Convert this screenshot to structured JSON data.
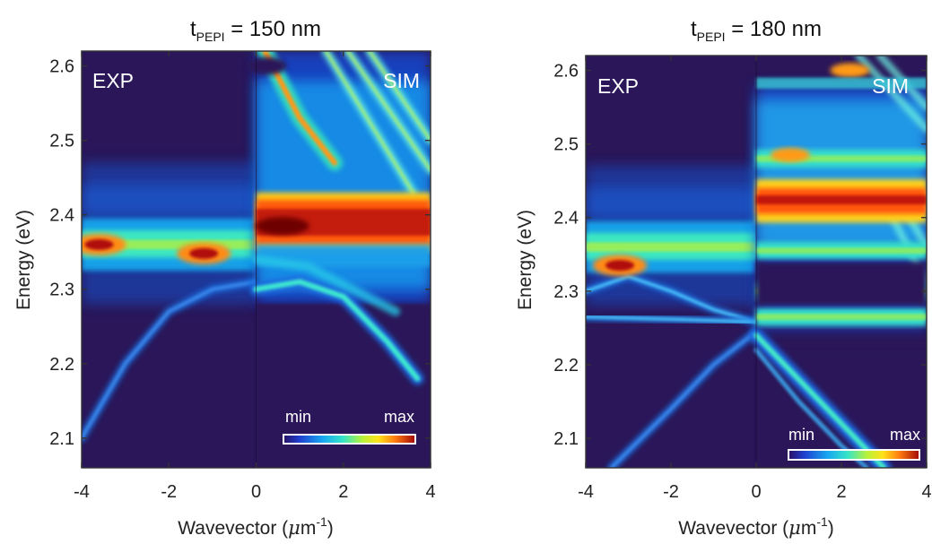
{
  "figure": {
    "panels": [
      {
        "title_main": "t",
        "title_sub": "PEPI",
        "title_value": " = 150 nm",
        "left_label": "EXP",
        "right_label": "SIM",
        "ylabel": "Energy (eV)",
        "xlabel_main": "Wavevector (",
        "xlabel_mu": "μ",
        "xlabel_unit": "m",
        "xlabel_exp": "-1",
        "xlabel_close": ")",
        "xticks": [
          "-4",
          "-2",
          "0",
          "2",
          "4"
        ],
        "yticks": [
          "2.1",
          "2.2",
          "2.3",
          "2.4",
          "2.5",
          "2.6"
        ],
        "colorbar_min": "min",
        "colorbar_max": "max"
      },
      {
        "title_main": "t",
        "title_sub": "PEPI",
        "title_value": " = 180 nm",
        "left_label": "EXP",
        "right_label": "SIM",
        "ylabel": "Energy (eV)",
        "xlabel_main": "Wavevector (",
        "xlabel_mu": "μ",
        "xlabel_unit": "m",
        "xlabel_exp": "-1",
        "xlabel_close": ")",
        "xticks": [
          "-4",
          "-2",
          "0",
          "2",
          "4"
        ],
        "yticks": [
          "2.1",
          "2.2",
          "2.3",
          "2.4",
          "2.5",
          "2.6"
        ],
        "colorbar_min": "min",
        "colorbar_max": "max"
      }
    ]
  },
  "chart_data": [
    {
      "type": "heatmap",
      "title": "tPEPI = 150 nm",
      "xlabel": "Wavevector (μm-1)",
      "ylabel": "Energy (eV)",
      "xlim": [
        -4,
        4
      ],
      "ylim": [
        2.06,
        2.62
      ],
      "xticks": [
        -4,
        -2,
        0,
        2,
        4
      ],
      "yticks": [
        2.1,
        2.2,
        2.3,
        2.4,
        2.5,
        2.6
      ],
      "halves": {
        "left": "EXP",
        "right": "SIM"
      },
      "colorbar": {
        "labels": [
          "min",
          "max"
        ],
        "colormap": "jet",
        "placement": "bottom-right"
      },
      "features": {
        "exp": {
          "exciton_band_center": 2.36,
          "exciton_band_width": 0.035,
          "hotspots": [
            {
              "k": -1.2,
              "E": 2.348
            },
            {
              "k": -3.6,
              "E": 2.36
            }
          ],
          "lower_branch": [
            [
              -4,
              2.1
            ],
            [
              -3,
              2.2
            ],
            [
              -2,
              2.27
            ],
            [
              -1,
              2.3
            ],
            [
              0,
              2.31
            ]
          ],
          "upper_glow_center": 2.42
        },
        "sim": {
          "exciton_band": [
            2.36,
            2.42
          ],
          "exciton_peak": {
            "k": 0.6,
            "E": 2.385
          },
          "upper_mode": [
            [
              0.2,
              2.62
            ],
            [
              1,
              2.53
            ],
            [
              1.8,
              2.47
            ]
          ],
          "upper_streaks": [
            [
              [
                1.6,
                2.62
              ],
              [
                3.6,
                2.43
              ]
            ],
            [
              [
                2.1,
                2.62
              ],
              [
                4,
                2.46
              ]
            ],
            [
              [
                2.6,
                2.62
              ],
              [
                4,
                2.5
              ]
            ]
          ],
          "lower_branch": [
            [
              0,
              2.3
            ],
            [
              1,
              2.31
            ],
            [
              2,
              2.29
            ],
            [
              3,
              2.23
            ],
            [
              3.7,
              2.18
            ]
          ],
          "dark_region_below": 2.28
        }
      }
    },
    {
      "type": "heatmap",
      "title": "tPEPI = 180 nm",
      "xlabel": "Wavevector (μm-1)",
      "ylabel": "Energy (eV)",
      "xlim": [
        -4,
        4
      ],
      "ylim": [
        2.06,
        2.62
      ],
      "xticks": [
        -4,
        -2,
        0,
        2,
        4
      ],
      "yticks": [
        2.1,
        2.2,
        2.3,
        2.4,
        2.5,
        2.6
      ],
      "halves": {
        "left": "EXP",
        "right": "SIM"
      },
      "colorbar": {
        "labels": [
          "min",
          "max"
        ],
        "colormap": "jet",
        "placement": "bottom-right"
      },
      "features": {
        "exp": {
          "exciton_band_center": 2.36,
          "exciton_band_width": 0.035,
          "hotspots": [
            {
              "k": -3.2,
              "E": 2.335
            }
          ],
          "branches": [
            [
              [
                -4,
                2.3
              ],
              [
                -3,
                2.32
              ],
              [
                -2,
                2.3
              ],
              [
                -1,
                2.275
              ],
              [
                0,
                2.258
              ]
            ],
            [
              [
                -4,
                2.265
              ],
              [
                -2,
                2.262
              ],
              [
                0,
                2.258
              ]
            ],
            [
              [
                -3.4,
                2.06
              ],
              [
                -2,
                2.14
              ],
              [
                -1,
                2.2
              ],
              [
                0,
                2.245
              ]
            ]
          ],
          "upper_glow_center": 2.42
        },
        "sim": {
          "exciton_band": [
            2.405,
            2.44
          ],
          "bands": [
            2.355,
            2.3,
            2.265,
            2.48
          ],
          "hotspots": [
            {
              "k": 0.8,
              "E": 2.485
            },
            {
              "k": 2.2,
              "E": 2.6
            }
          ],
          "lower_branch": [
            [
              0,
              2.24
            ],
            [
              1,
              2.18
            ],
            [
              2,
              2.12
            ],
            [
              3,
              2.06
            ]
          ],
          "dark_region": [
            2.28,
            2.34
          ]
        }
      }
    }
  ]
}
